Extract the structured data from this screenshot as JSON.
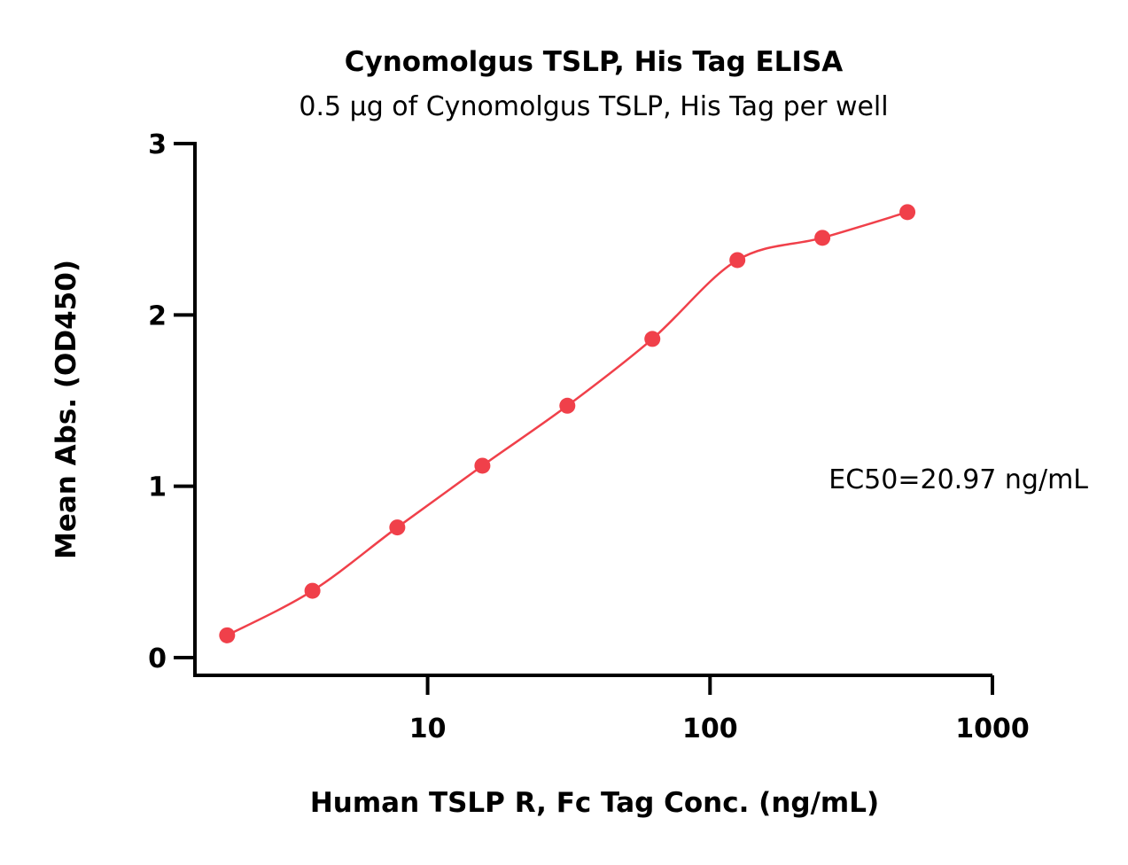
{
  "chart_data": {
    "type": "scatter",
    "title": "Cynomolgus TSLP, His Tag ELISA",
    "subtitle": "0.5 µg of Cynomolgus TSLP, His Tag per well",
    "xlabel": "Human TSLP R, Fc Tag Conc. (ng/mL)",
    "ylabel": "Mean Abs. (OD450)",
    "x_scale": "log",
    "xlim": [
      1.5,
      1000
    ],
    "ylim": [
      0,
      3
    ],
    "x_ticks": [
      10,
      100,
      1000
    ],
    "x_tick_labels": [
      "10",
      "100",
      "1000"
    ],
    "y_ticks": [
      0,
      1,
      2,
      3
    ],
    "y_tick_labels": [
      "0",
      "1",
      "2",
      "3"
    ],
    "grid": false,
    "annotation": "EC50=20.97 ng/mL",
    "color": "#f0404a",
    "series": [
      {
        "x": [
          1.95,
          3.91,
          7.81,
          15.63,
          31.25,
          62.5,
          125,
          250,
          500
        ],
        "y": [
          0.13,
          0.39,
          0.76,
          1.12,
          1.47,
          1.86,
          2.32,
          2.45,
          2.6
        ]
      }
    ]
  }
}
